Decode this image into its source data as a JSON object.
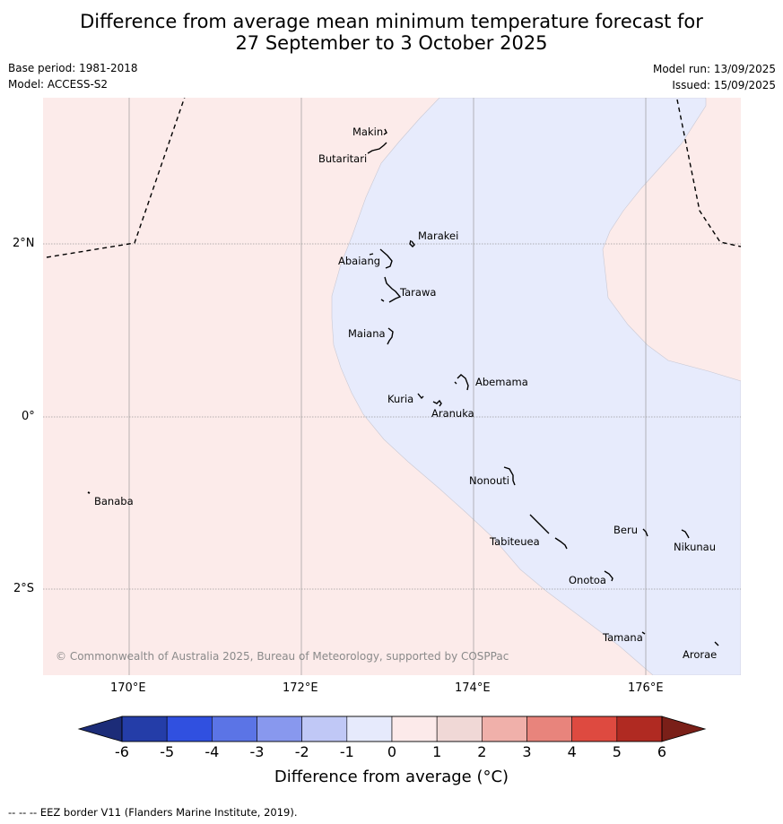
{
  "title": {
    "line1": "Difference from average mean minimum temperature forecast for",
    "line2": "27 September to 3 October 2025"
  },
  "meta": {
    "base_period": "Base period: 1981-2018",
    "model": "Model: ACCESS-S2",
    "model_run": "Model run: 13/09/2025",
    "issued": "Issued: 15/09/2025"
  },
  "map": {
    "longitude_ticks": [
      "170°E",
      "172°E",
      "174°E",
      "176°E"
    ],
    "latitude_ticks": [
      "2°N",
      "0°",
      "2°S"
    ],
    "islands": [
      "Makin",
      "Butaritari",
      "Marakei",
      "Abaiang",
      "Tarawa",
      "Maiana",
      "Abemama",
      "Kuria",
      "Aranuka",
      "Banaba",
      "Nonouti",
      "Tabiteuea",
      "Beru",
      "Nikunau",
      "Onotoa",
      "Tamana",
      "Arorae"
    ],
    "copyright": "© Commonwealth of Australia 2025, Bureau of Meteorology, supported by COSPPac",
    "colors": {
      "warm_fill": "#fcebea",
      "cool_fill": "#e7ebfc",
      "grid": "#999999",
      "eez": "#000000"
    }
  },
  "colorbar": {
    "ticks": [
      "-6",
      "-5",
      "-4",
      "-3",
      "-2",
      "-1",
      "0",
      "1",
      "2",
      "3",
      "4",
      "5",
      "6"
    ],
    "colors": [
      "#243da8",
      "#3050e0",
      "#5b74e6",
      "#8898ee",
      "#c0c8f6",
      "#e6eafc",
      "#fceaea",
      "#f0d8d6",
      "#f0b0aa",
      "#e8847c",
      "#de4a40",
      "#b02a22"
    ],
    "under_color": "#1c2c78",
    "over_color": "#7a1f18",
    "label": "Difference from average (°C)"
  },
  "footnote": "--  --  -- EEZ border V11 (Flanders Marine Institute, 2019)."
}
